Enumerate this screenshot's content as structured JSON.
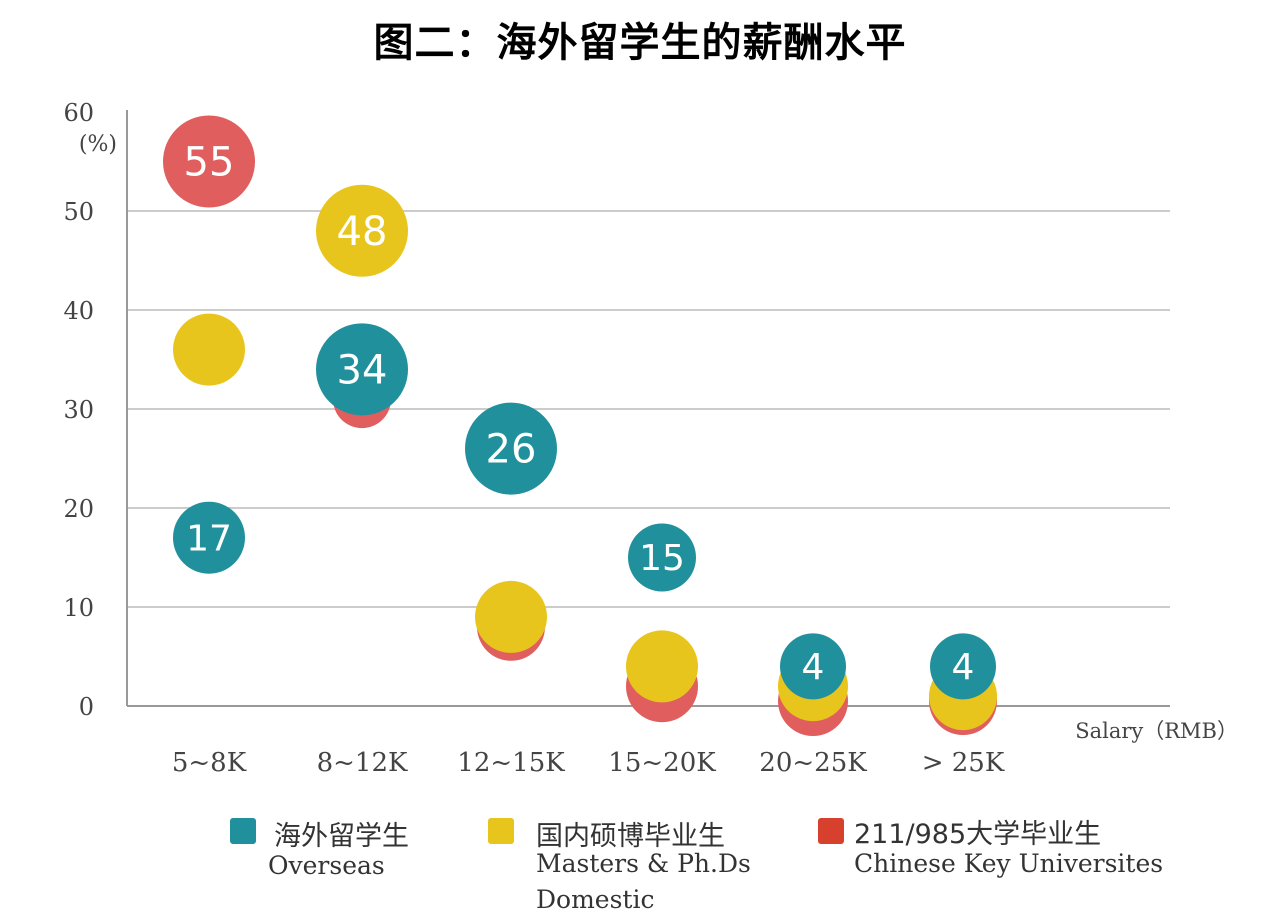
{
  "title": "图二：海外留学生的薪酬水平",
  "colors": {
    "overseas": "#20909c",
    "domestic": "#e8c51d",
    "key_universities": "#e05e5e",
    "grid": "#cccccc",
    "axis_text": "#444444"
  },
  "chart_data": {
    "type": "bubble",
    "title": "图二：海外留学生的薪酬水平",
    "ylabel_top": "60",
    "ylabel_unit": "(%)",
    "xlabel": "Salary（RMB）",
    "ylim": [
      0,
      60
    ],
    "yticks": [
      0,
      10,
      20,
      30,
      40,
      50
    ],
    "categories": [
      "5~8K",
      "8~12K",
      "12~15K",
      "15~20K",
      "20~25K",
      "> 25K"
    ],
    "series": [
      {
        "key": "key_universities",
        "name_zh": "211/985大学毕业生",
        "name_en": "Chinese Key Universites",
        "color": "#e05e5e",
        "values": [
          55,
          31,
          8,
          2,
          0.5,
          0.5
        ],
        "labels": [
          "55",
          "",
          "",
          "",
          "",
          ""
        ]
      },
      {
        "key": "domestic",
        "name_zh": "国内硕博毕业生",
        "name_en": [
          "Masters & Ph.Ds",
          "Domestic"
        ],
        "color": "#e8c51d",
        "values": [
          36,
          48,
          9,
          4,
          2,
          1
        ],
        "labels": [
          "",
          "48",
          "",
          "",
          "",
          ""
        ]
      },
      {
        "key": "overseas",
        "name_zh": "海外留学生",
        "name_en": "Overseas",
        "color": "#20909c",
        "values": [
          17,
          34,
          26,
          15,
          4,
          4
        ],
        "labels": [
          "17",
          "34",
          "26",
          "15",
          "4",
          "4"
        ]
      }
    ]
  },
  "legend": [
    {
      "zh": "海外留学生",
      "en": [
        "Overseas"
      ],
      "color": "#20909c"
    },
    {
      "zh": "国内硕博毕业生",
      "en": [
        "Masters & Ph.Ds",
        "Domestic"
      ],
      "color": "#e8c51d"
    },
    {
      "zh": "211/985大学毕业生",
      "en": [
        "Chinese Key Universites"
      ],
      "color": "#d8402e"
    }
  ]
}
